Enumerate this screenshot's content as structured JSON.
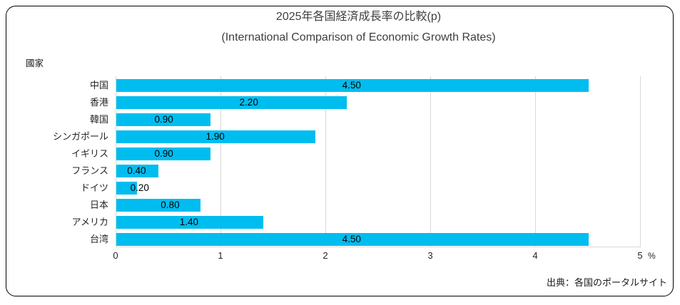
{
  "header": {
    "title": "2025年各国経済成長率の比較(p)",
    "subtitle": "(International Comparison of Economic Growth Rates)"
  },
  "axis": {
    "category_axis_title": "國家",
    "value_axis_unit": "%",
    "tick_labels": [
      "0",
      "1",
      "2",
      "3",
      "4",
      "5"
    ]
  },
  "footer": {
    "source": "出典：各国のポータルサイト"
  },
  "colors": {
    "bar": "#00bdef",
    "gridline": "#d9d9d9",
    "title_text": "#3f3f3f",
    "axis_text": "#262626",
    "data_label": "#000000"
  },
  "chart_data": {
    "type": "bar",
    "orientation": "horizontal",
    "title": "2025年各国経済成長率の比較(p)",
    "subtitle": "(International Comparison of Economic Growth Rates)",
    "category_axis_title": "國家",
    "categories": [
      "中国",
      "香港",
      "韓国",
      "シンガポール",
      "イギリス",
      "フランス",
      "ドイツ",
      "日本",
      "アメリカ",
      "台湾"
    ],
    "values": [
      4.5,
      2.2,
      0.9,
      1.9,
      0.9,
      0.4,
      0.2,
      0.8,
      1.4,
      4.5
    ],
    "value_labels": [
      "4.50",
      "2.20",
      "0.90",
      "1.90",
      "0.90",
      "0.40",
      "0.20",
      "0.80",
      "1.40",
      "4.50"
    ],
    "value_label_positions_units": [
      2.25,
      1.27,
      0.46,
      0.95,
      0.46,
      0.2,
      0.23,
      0.52,
      0.7,
      2.25
    ],
    "xlim": [
      0,
      5
    ],
    "xticks": [
      0,
      1,
      2,
      3,
      4,
      5
    ],
    "x_unit": "%",
    "grid": true,
    "legend": false,
    "source": "出典：各国のポータルサイト"
  }
}
